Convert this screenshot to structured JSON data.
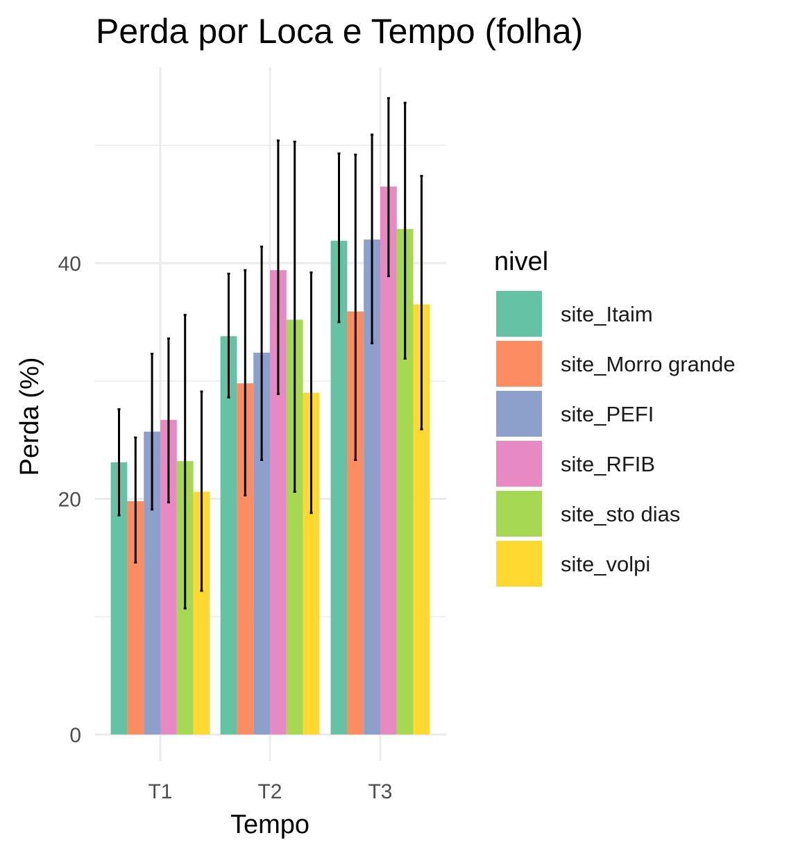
{
  "chart_data": {
    "type": "bar",
    "title": "Perda por Loca e Tempo (folha)",
    "xlabel": "Tempo",
    "ylabel": "Perda (%)",
    "categories": [
      "T1",
      "T2",
      "T3"
    ],
    "ylim": [
      0,
      56
    ],
    "yticks": [
      0,
      20,
      40
    ],
    "y_minor_gridlines": [
      10,
      30,
      50
    ],
    "grid": true,
    "legend": {
      "title": "nivel",
      "placement": "right"
    },
    "series": [
      {
        "name": "site_Itaim",
        "color": "#66c2a5",
        "values": [
          23.1,
          33.8,
          41.9
        ],
        "error_low": [
          18.6,
          28.6,
          35.0
        ],
        "error_high": [
          27.6,
          39.1,
          49.3
        ]
      },
      {
        "name": "site_Morro grande",
        "color": "#fc8d62",
        "values": [
          19.8,
          29.8,
          35.9
        ],
        "error_low": [
          14.6,
          20.3,
          23.3
        ],
        "error_high": [
          25.2,
          39.4,
          49.2
        ]
      },
      {
        "name": "site_PEFI",
        "color": "#8da0cb",
        "values": [
          25.7,
          32.4,
          42.0
        ],
        "error_low": [
          19.1,
          23.3,
          33.2
        ],
        "error_high": [
          32.3,
          41.4,
          50.9
        ]
      },
      {
        "name": "site_RFIB",
        "color": "#e78ac3",
        "values": [
          26.7,
          39.4,
          46.5
        ],
        "error_low": [
          19.7,
          28.9,
          38.9
        ],
        "error_high": [
          33.6,
          50.4,
          54.0
        ]
      },
      {
        "name": "site_sto dias",
        "color": "#a6d854",
        "values": [
          23.2,
          35.2,
          42.9
        ],
        "error_low": [
          10.7,
          20.6,
          31.9
        ],
        "error_high": [
          35.6,
          50.3,
          53.6
        ]
      },
      {
        "name": "site_volpi",
        "color": "#ffd92f",
        "values": [
          20.6,
          29.0,
          36.5
        ],
        "error_low": [
          12.2,
          18.8,
          25.9
        ],
        "error_high": [
          29.1,
          39.2,
          47.4
        ]
      }
    ]
  }
}
